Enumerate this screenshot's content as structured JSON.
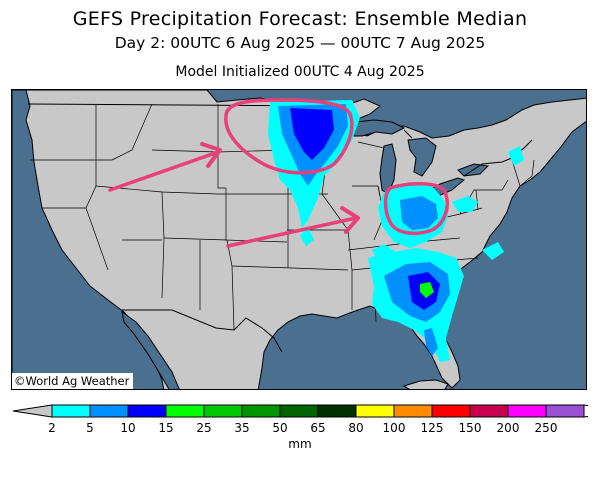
{
  "title": "GEFS Precipitation Forecast: Ensemble Median",
  "subtitle": "Day 2: 00UTC 6 Aug 2025 — 00UTC 7 Aug 2025",
  "init_line": "Model Initialized 00UTC 4 Aug 2025",
  "credit": "©World Ag Weather",
  "colors": {
    "water": "#4a6f8f",
    "land": "#c8c8c8",
    "annotation": "#e8407a"
  },
  "colorbar": {
    "unit": "mm",
    "ticks": [
      "2",
      "5",
      "10",
      "15",
      "25",
      "35",
      "50",
      "65",
      "80",
      "100",
      "125",
      "150",
      "200",
      "250"
    ],
    "under_color": "#c8c8c8",
    "over_color": "#ffffff",
    "bins": [
      "#00ffff",
      "#0090ff",
      "#0000ff",
      "#00ff00",
      "#00c800",
      "#009600",
      "#006400",
      "#003000",
      "#ffff00",
      "#ff8c00",
      "#ff0000",
      "#c80050",
      "#ff00ff",
      "#9a50d2"
    ]
  }
}
